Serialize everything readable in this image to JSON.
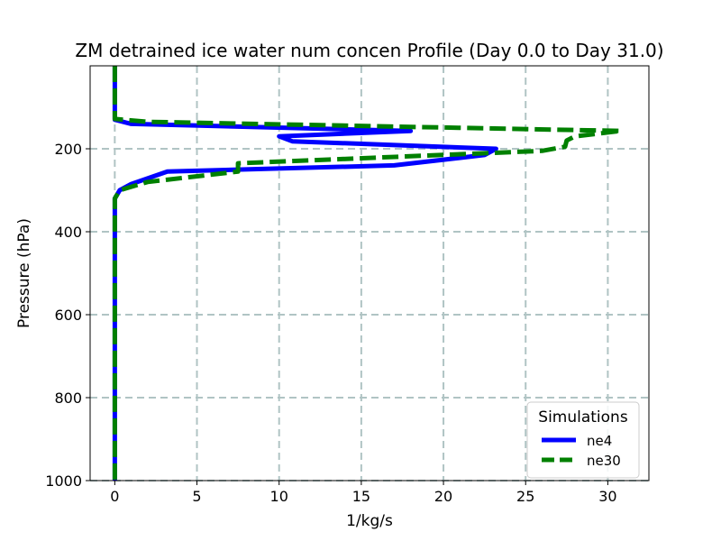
{
  "chart_data": {
    "type": "line",
    "title": "ZM detrained ice water num concen Profile (Day 0.0 to Day 31.0)",
    "xlabel": "1/kg/s",
    "ylabel": "Pressure (hPa)",
    "xlim": [
      -1.5,
      32.5
    ],
    "ylim": [
      1000,
      0
    ],
    "y_inverted": true,
    "xticks": [
      0,
      5,
      10,
      15,
      20,
      25,
      30
    ],
    "yticks": [
      200,
      400,
      600,
      800,
      1000
    ],
    "grid": true,
    "legend_title": "Simulations",
    "legend_position": "lower-right",
    "series": [
      {
        "name": "ne4",
        "color": "#0000ff",
        "style": "solid",
        "x": [
          0,
          0,
          0,
          1,
          18,
          10,
          10.8,
          23.2,
          22.5,
          17,
          3.2,
          1,
          0.3,
          0,
          0,
          0,
          0,
          0
        ],
        "y": [
          0,
          100,
          130,
          140,
          157,
          170,
          182,
          200,
          215,
          240,
          255,
          285,
          300,
          320,
          400,
          600,
          800,
          1000
        ]
      },
      {
        "name": "ne30",
        "color": "#008000",
        "style": "dashed",
        "x": [
          0,
          0,
          0,
          2,
          30.8,
          28,
          27.5,
          27.4,
          26,
          7.5,
          7.5,
          2,
          0.3,
          0,
          0,
          0,
          0,
          0
        ],
        "y": [
          0,
          100,
          128,
          135,
          157,
          170,
          180,
          195,
          205,
          235,
          255,
          280,
          300,
          320,
          400,
          600,
          800,
          1000
        ]
      }
    ]
  }
}
